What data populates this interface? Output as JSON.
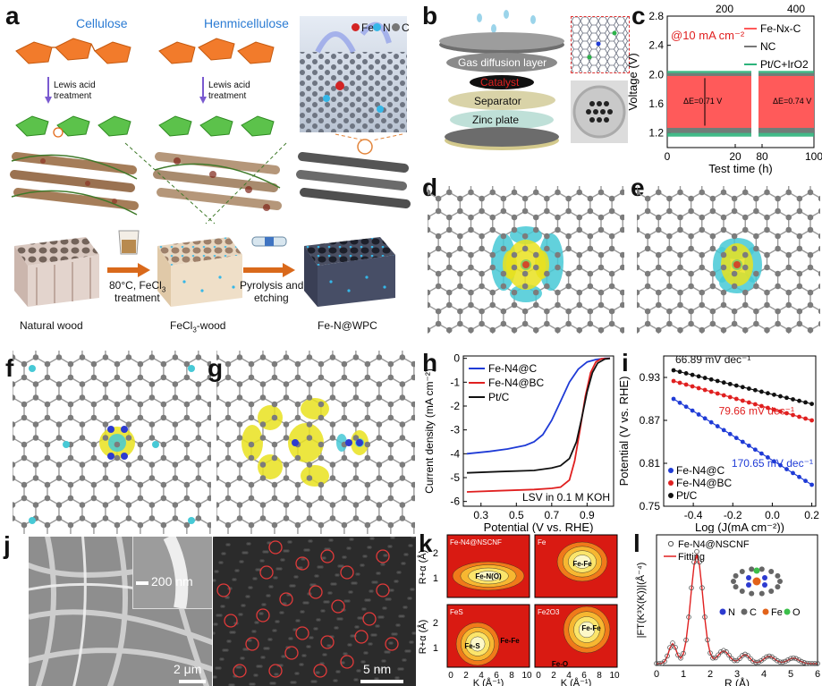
{
  "panels": {
    "a": {
      "label": "a",
      "cellulose": "Cellulose",
      "hemicellulose": "Henmicellulose",
      "lewis1": "Lewis acid",
      "treat1": "treatment",
      "lewis2": "Lewis acid",
      "treat2": "treatment",
      "legend_fe": "Fe",
      "legend_n": "N",
      "legend_c": "C",
      "step1_a": "80°C, FeCl",
      "step1_sub": "3",
      "step1_b": "treatment",
      "step2_a": "Pyrolysis and",
      "step2_b": "etching",
      "caption1": "Natural wood",
      "caption2_a": "FeCl",
      "caption2_sub": "3",
      "caption2_b": "-wood",
      "caption3": "Fe-N@WPC"
    },
    "b": {
      "label": "b",
      "layer1": "Gas diffusion layer",
      "layer2": "Catalyst",
      "layer3": "Separator",
      "layer4": "Zinc plate"
    },
    "c": {
      "label": "c"
    },
    "d": {
      "label": "d"
    },
    "e": {
      "label": "e"
    },
    "f": {
      "label": "f"
    },
    "g": {
      "label": "g"
    },
    "h": {
      "label": "h"
    },
    "i": {
      "label": "i"
    },
    "j": {
      "label": "j",
      "scale1": "200 nm",
      "scale2": "2 μm",
      "scale3": "5 nm"
    },
    "k": {
      "label": "k",
      "ylabel": "R+α (Å)",
      "xlabel": "K (Å⁻¹)",
      "sub1_title": "Fe-N4@NSCNF",
      "sub1_peak": "Fe-N(O)",
      "sub2_title": "Fe",
      "sub2_peak": "Fe-Fe",
      "sub3_title": "FeS",
      "sub3_peak1": "Fe-S",
      "sub3_peak2": "Fe-Fe",
      "sub4_title": "Fe2O3",
      "sub4_peak1": "Fe-Fe",
      "sub4_peak2": "Fe-O",
      "yticks": [
        "2",
        "1"
      ],
      "xticks": [
        "0",
        "2",
        "4",
        "6",
        "8",
        "10"
      ]
    },
    "l": {
      "label": "l",
      "legend1": "Fe-N4@NSCNF",
      "legend2": "Fitting",
      "ylabel": "|FT(K³X(K))|(Å⁻⁴)",
      "xlabel": "R (Å)",
      "xticks": [
        "0",
        "1",
        "2",
        "3",
        "4",
        "5",
        "6"
      ],
      "atom_n": "N",
      "atom_c": "C",
      "atom_fe": "Fe",
      "atom_o": "O"
    }
  },
  "chart_data": [
    {
      "panel": "c",
      "type": "line",
      "xlabel": "Test time (h)",
      "ylabel": "Voltage (V)",
      "ylim": [
        1.0,
        2.8
      ],
      "yticks": [
        "1.2",
        "1.6",
        "2.0",
        "2.4",
        "2.8"
      ],
      "xticks_bottom": [
        "0",
        "20",
        "80",
        "100"
      ],
      "xticks_top": [
        "200",
        "400"
      ],
      "condition": "@10 mA cm⁻²",
      "series": [
        {
          "name": "Fe-Nx-C",
          "color": "#ff5a5a",
          "charge": 1.98,
          "discharge": 1.27
        },
        {
          "name": "NC",
          "color": "#777777",
          "charge": 2.02,
          "discharge": 1.2
        },
        {
          "name": "Pt/C+IrO2",
          "color": "#2db37b",
          "charge": 2.05,
          "discharge": 1.15
        }
      ],
      "annotations": [
        "ΔE=0.71 V",
        "ΔE=0.74 V"
      ]
    },
    {
      "panel": "h",
      "type": "line",
      "xlabel": "Potential (V vs. RHE)",
      "ylabel": "Current density (mA cm⁻²)",
      "xlim": [
        0.2,
        1.05
      ],
      "ylim": [
        -6.2,
        0.1
      ],
      "xticks": [
        0.3,
        0.5,
        0.7,
        0.9
      ],
      "yticks": [
        0,
        -1,
        -2,
        -3,
        -4,
        -5,
        -6
      ],
      "note": "LSV in 0.1 M KOH",
      "series": [
        {
          "name": "Fe-N4@C",
          "color": "#1f3bd6",
          "x": [
            0.22,
            0.35,
            0.45,
            0.55,
            0.6,
            0.65,
            0.7,
            0.75,
            0.8,
            0.85,
            0.9,
            0.95,
            1.0,
            1.03
          ],
          "y": [
            -4.0,
            -3.9,
            -3.8,
            -3.65,
            -3.5,
            -3.2,
            -2.6,
            -1.8,
            -1.0,
            -0.45,
            -0.15,
            -0.05,
            0,
            0
          ]
        },
        {
          "name": "Fe-N4@BC",
          "color": "#e02020",
          "x": [
            0.22,
            0.4,
            0.6,
            0.7,
            0.75,
            0.8,
            0.83,
            0.86,
            0.89,
            0.92,
            0.95,
            0.98,
            1.03
          ],
          "y": [
            -5.6,
            -5.55,
            -5.5,
            -5.45,
            -5.4,
            -5.1,
            -4.3,
            -3.0,
            -1.6,
            -0.6,
            -0.15,
            -0.02,
            0
          ]
        },
        {
          "name": "Pt/C",
          "color": "#111111",
          "x": [
            0.22,
            0.4,
            0.6,
            0.7,
            0.75,
            0.8,
            0.84,
            0.87,
            0.9,
            0.93,
            0.96,
            1.0,
            1.03
          ],
          "y": [
            -4.8,
            -4.75,
            -4.7,
            -4.6,
            -4.5,
            -4.2,
            -3.5,
            -2.5,
            -1.4,
            -0.6,
            -0.2,
            -0.03,
            0
          ]
        }
      ]
    },
    {
      "panel": "i",
      "type": "scatter",
      "xlabel": "Log (J(mA cm⁻²))",
      "ylabel": "Potential (V vs. RHE)",
      "xlim": [
        -0.55,
        0.22
      ],
      "ylim": [
        0.75,
        0.96
      ],
      "xticks": [
        -0.4,
        -0.2,
        0.0,
        0.2
      ],
      "yticks": [
        0.75,
        0.81,
        0.87,
        0.93
      ],
      "series": [
        {
          "name": "Fe-N4@C",
          "color": "#1f3bd6",
          "slope_label": "170.65 mV dec⁻¹",
          "x0": -0.5,
          "y0": 0.9,
          "x1": 0.2,
          "y1": 0.78
        },
        {
          "name": "Fe-N4@BC",
          "color": "#e02020",
          "slope_label": "79.66 mV dec⁻¹",
          "x0": -0.5,
          "y0": 0.925,
          "x1": 0.2,
          "y1": 0.87
        },
        {
          "name": "Pt/C",
          "color": "#111111",
          "slope_label": "66.89 mV dec⁻¹",
          "x0": -0.5,
          "y0": 0.94,
          "x1": 0.2,
          "y1": 0.893
        }
      ]
    }
  ]
}
